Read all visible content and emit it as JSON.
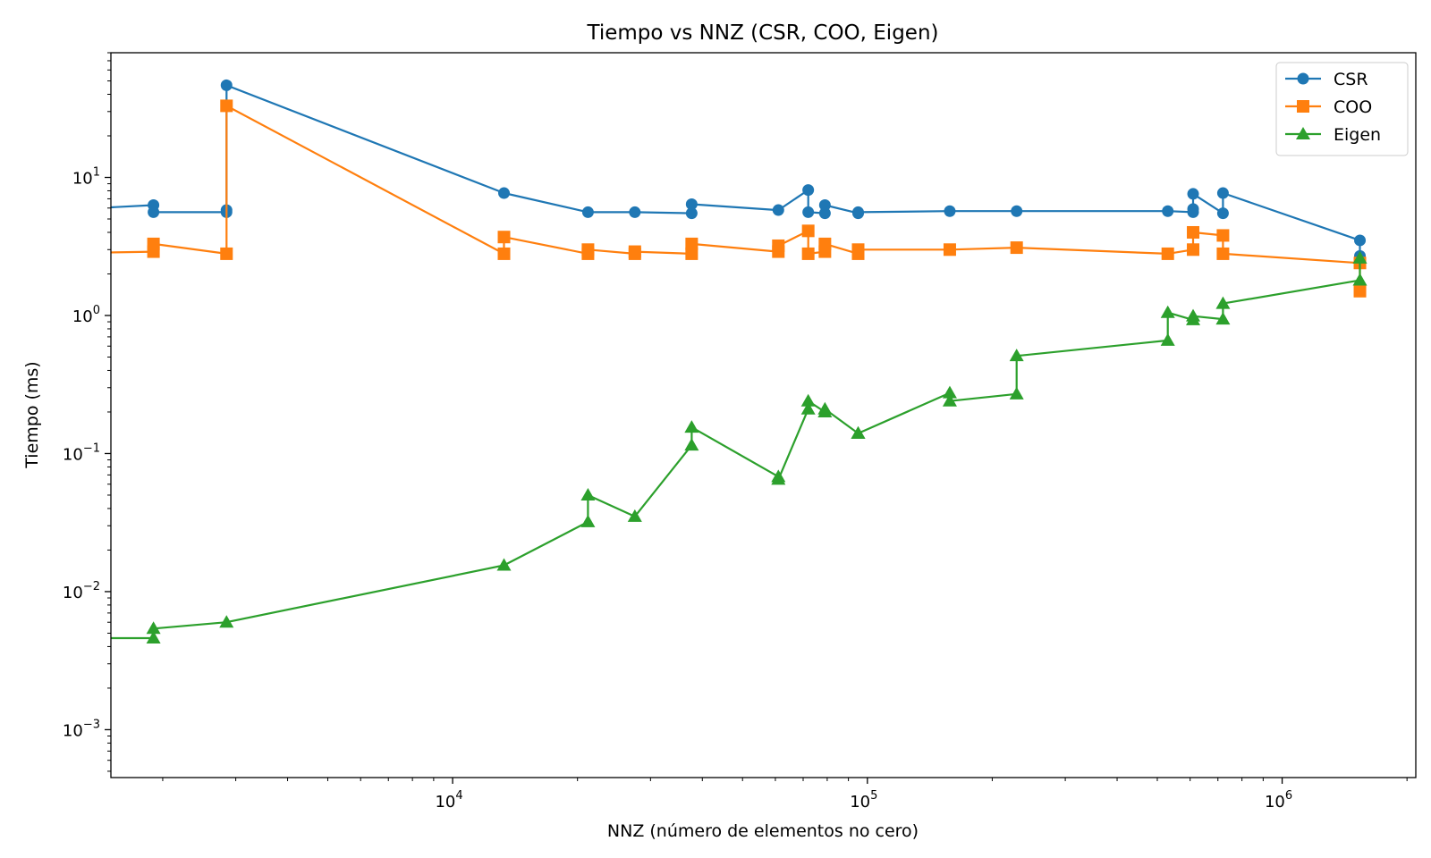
{
  "chart_data": {
    "type": "line",
    "title": "Tiempo vs NNZ (CSR, COO, Eigen)",
    "xlabel": "NNZ (número de elementos no cero)",
    "ylabel": "Tiempo (ms)",
    "xscale": "log",
    "yscale": "log",
    "xlim": [
      1500,
      2100000
    ],
    "ylim": [
      0.00045,
      80
    ],
    "xticks": [
      {
        "base": "10",
        "exp": "4",
        "value": 10000
      },
      {
        "base": "10",
        "exp": "5",
        "value": 100000
      },
      {
        "base": "10",
        "exp": "6",
        "value": 1000000
      }
    ],
    "yticks": [
      {
        "base": "10",
        "exp": "−3",
        "value": 0.001
      },
      {
        "base": "10",
        "exp": "−2",
        "value": 0.01
      },
      {
        "base": "10",
        "exp": "−1",
        "value": 0.1
      },
      {
        "base": "10",
        "exp": "0",
        "value": 1
      },
      {
        "base": "10",
        "exp": "1",
        "value": 10
      }
    ],
    "grid": false,
    "legend_position": "top-right",
    "series": [
      {
        "name": "CSR",
        "color": "#1f77b4",
        "marker": "circle",
        "x": [
          1000,
          1900,
          1900,
          2850,
          2850,
          2850,
          13300,
          21200,
          27500,
          37700,
          37700,
          61000,
          72000,
          72000,
          79000,
          79000,
          95000,
          95000,
          158000,
          229000,
          530000,
          610000,
          610000,
          610000,
          720000,
          720000,
          1540000,
          1540000
        ],
        "y": [
          5.7,
          6.3,
          5.6,
          5.6,
          5.8,
          46.5,
          7.7,
          5.6,
          5.6,
          5.5,
          6.4,
          5.8,
          8.1,
          5.6,
          5.5,
          6.3,
          5.5,
          5.6,
          5.7,
          5.7,
          5.7,
          5.6,
          5.9,
          7.6,
          5.5,
          7.7,
          3.5,
          2.7
        ]
      },
      {
        "name": "COO",
        "color": "#ff7f0e",
        "marker": "square",
        "x": [
          1000,
          1900,
          1900,
          2850,
          2850,
          13300,
          13300,
          21200,
          21200,
          27500,
          27500,
          37700,
          37700,
          61000,
          61000,
          72000,
          72000,
          79000,
          79000,
          95000,
          95000,
          158000,
          229000,
          530000,
          610000,
          610000,
          720000,
          720000,
          1540000,
          1540000
        ],
        "y": [
          2.8,
          2.9,
          3.3,
          2.8,
          33.0,
          2.8,
          3.7,
          2.8,
          3.0,
          2.8,
          2.9,
          2.8,
          3.3,
          2.9,
          3.2,
          4.1,
          2.8,
          2.9,
          3.3,
          2.8,
          3.0,
          3.0,
          3.1,
          2.8,
          3.0,
          4.0,
          3.8,
          2.8,
          2.4,
          1.5
        ]
      },
      {
        "name": "Eigen",
        "color": "#2ca02c",
        "marker": "triangle",
        "x": [
          1000,
          1900,
          1900,
          2850,
          13300,
          21200,
          21200,
          27500,
          37700,
          37700,
          61000,
          61000,
          72000,
          72000,
          79000,
          79000,
          95000,
          95000,
          158000,
          158000,
          229000,
          229000,
          530000,
          530000,
          610000,
          610000,
          720000,
          720000,
          1540000,
          1540000
        ],
        "y": [
          0.0046,
          0.0046,
          0.0054,
          0.006,
          0.0155,
          0.032,
          0.05,
          0.035,
          0.115,
          0.155,
          0.068,
          0.065,
          0.21,
          0.24,
          0.2,
          0.21,
          0.14,
          0.14,
          0.275,
          0.24,
          0.27,
          0.51,
          0.66,
          1.05,
          0.93,
          0.99,
          0.94,
          1.22,
          1.8,
          2.6
        ]
      }
    ]
  }
}
